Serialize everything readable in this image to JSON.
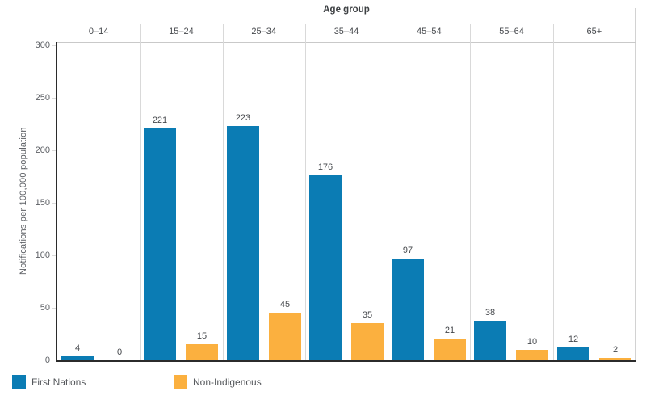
{
  "chart_data": {
    "type": "bar",
    "title": "Age group",
    "ylabel": "Notifications per 100,000 population",
    "categories": [
      "0–14",
      "15–24",
      "25–34",
      "35–44",
      "45–54",
      "55–64",
      "65+"
    ],
    "series": [
      {
        "name": "First Nations",
        "color": "#0B7CB4",
        "values": [
          4,
          221,
          223,
          176,
          97,
          38,
          12
        ]
      },
      {
        "name": "Non-Indigenous",
        "color": "#FBB03F",
        "values": [
          0,
          15,
          45,
          35,
          21,
          10,
          2
        ]
      }
    ],
    "ylim": [
      0,
      300
    ],
    "yticks": [
      0,
      50,
      100,
      150,
      200,
      250,
      300
    ],
    "grid": "vertical-column-separators",
    "legend_position": "bottom-left"
  }
}
